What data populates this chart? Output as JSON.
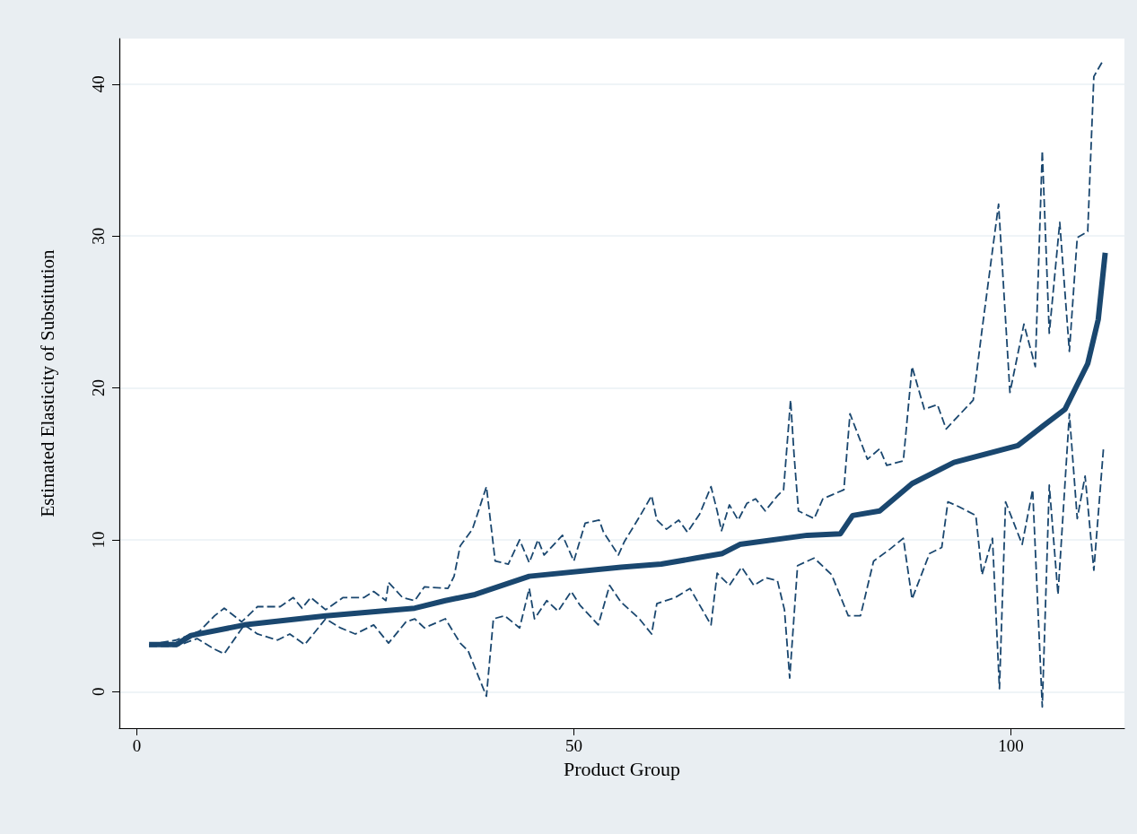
{
  "chart_data": {
    "type": "line",
    "xlabel": "Product Group",
    "ylabel": "Estimated Elasticity of Substitution",
    "xlim": [
      -2,
      113
    ],
    "ylim": [
      -2.4,
      43
    ],
    "xticks": [
      0,
      50,
      100
    ],
    "yticks": [
      0,
      10,
      20,
      30,
      40
    ],
    "grid": "y",
    "marker": "none",
    "series": [
      {
        "color": "#1a476f",
        "line_style": "dashed",
        "x": [
          1.4,
          4.5,
          7.2,
          8.9,
          10,
          12,
          13.8,
          16.4,
          17.9,
          18.9,
          19.9,
          21.6,
          23.6,
          26,
          27.1,
          28.5,
          28.8,
          30.4,
          31.8,
          32.9,
          35.6,
          36.3,
          37,
          38.4,
          40,
          40.8,
          41,
          42.5,
          43.8,
          44.9,
          45.9,
          46.6,
          48.7,
          50,
          51.3,
          52.9,
          53.4,
          55.1,
          55.8,
          57.5,
          58.9,
          59.5,
          60.6,
          62,
          63,
          64.4,
          65.7,
          66.4,
          66.9,
          67.8,
          68.8,
          69.8,
          70.8,
          71.9,
          73.3,
          74,
          74.8,
          75.2,
          75.7,
          77.5,
          78.5,
          80.9,
          81.6,
          83.6,
          85,
          85.8,
          87.7,
          88.7,
          90.1,
          91.6,
          92.6,
          95.7,
          96.7,
          98.6,
          99.9,
          101.5,
          102.8,
          103.6,
          104.4,
          105.6,
          106.7,
          107.6,
          108.8,
          109.5,
          110.5
        ],
        "values": [
          3.1,
          3.4,
          4.0,
          5.0,
          5.5,
          4.6,
          5.6,
          5.6,
          6.2,
          5.5,
          6.2,
          5.4,
          6.2,
          6.2,
          6.6,
          6.0,
          7.2,
          6.2,
          6.0,
          6.9,
          6.8,
          7.6,
          9.6,
          10.7,
          13.5,
          9.6,
          8.6,
          8.4,
          10.0,
          8.5,
          10.0,
          9.0,
          10.3,
          8.6,
          11.1,
          11.3,
          10.5,
          9.0,
          9.9,
          11.5,
          12.9,
          11.3,
          10.7,
          11.3,
          10.5,
          11.7,
          13.5,
          11.9,
          10.6,
          12.3,
          11.3,
          12.4,
          12.7,
          11.9,
          12.9,
          13.3,
          19.2,
          15.6,
          11.9,
          11.4,
          12.7,
          13.3,
          18.3,
          15.3,
          16.0,
          14.9,
          15.2,
          21.4,
          18.6,
          18.9,
          17.3,
          19.2,
          23.8,
          32.1,
          19.7,
          24.2,
          21.4,
          35.6,
          23.6,
          30.9,
          22.4,
          29.9,
          30.3,
          40.5,
          41.5
        ]
      },
      {
        "color": "#1a476f",
        "line_style": "dashed",
        "x": [
          1.4,
          4.5,
          6.9,
          8.9,
          10,
          12.3,
          13.8,
          16.1,
          17.5,
          19.2,
          20.2,
          21.6,
          23.3,
          25,
          27.1,
          28.8,
          30.8,
          31.8,
          32.9,
          35.3,
          37,
          37.9,
          40,
          40.8,
          42.1,
          43.8,
          44.9,
          45.5,
          46.9,
          48.2,
          49.7,
          50.7,
          52.8,
          54.1,
          55.4,
          57.5,
          58.9,
          59.5,
          61.6,
          63.3,
          65.7,
          66.4,
          67.8,
          69.2,
          70.6,
          72,
          73.3,
          74.1,
          74.7,
          75.6,
          77.5,
          79.5,
          81.4,
          82.8,
          84.3,
          86.2,
          87.7,
          88.7,
          90.7,
          92.1,
          92.8,
          94,
          96,
          96.7,
          97.9,
          98.7,
          99.4,
          101.3,
          102.5,
          103.6,
          104.4,
          105.4,
          106.7,
          107.6,
          108.5,
          109.5,
          110.6
        ],
        "values": [
          3.0,
          3.0,
          3.5,
          2.8,
          2.5,
          4.4,
          3.8,
          3.4,
          3.8,
          3.1,
          3.8,
          4.8,
          4.2,
          3.8,
          4.4,
          3.2,
          4.6,
          4.8,
          4.2,
          4.8,
          3.2,
          2.7,
          -0.3,
          4.8,
          5.0,
          4.2,
          6.8,
          4.8,
          6.0,
          5.3,
          6.6,
          5.7,
          4.4,
          7.0,
          5.9,
          4.8,
          3.8,
          5.8,
          6.2,
          6.8,
          4.4,
          7.8,
          7.0,
          8.2,
          7.0,
          7.5,
          7.3,
          5.4,
          0.9,
          8.3,
          8.8,
          7.7,
          5.0,
          5.0,
          8.6,
          9.4,
          10.1,
          6.1,
          9.1,
          9.5,
          12.5,
          12.2,
          11.6,
          7.7,
          10.1,
          0.2,
          12.5,
          9.7,
          13.3,
          -1.0,
          13.6,
          6.4,
          18.3,
          11.4,
          14.2,
          8.0,
          16.0
        ]
      },
      {
        "color": "#1a476f",
        "line_style": "solid",
        "x": [
          1.4,
          4.5,
          6.2,
          12.3,
          21.6,
          31.8,
          35.3,
          38.7,
          44.9,
          55.4,
          60,
          64,
          67,
          69,
          76.7,
          80.5,
          81.9,
          85,
          88.7,
          93.5,
          100.8,
          103.7,
          106.2,
          108.8,
          110,
          110.8
        ],
        "values": [
          3.1,
          3.1,
          3.7,
          4.4,
          5.0,
          5.5,
          6.0,
          6.4,
          7.6,
          8.2,
          8.4,
          8.8,
          9.1,
          9.7,
          10.3,
          10.4,
          11.6,
          11.9,
          13.7,
          15.1,
          16.2,
          17.5,
          18.6,
          21.6,
          24.5,
          28.9
        ]
      }
    ]
  }
}
